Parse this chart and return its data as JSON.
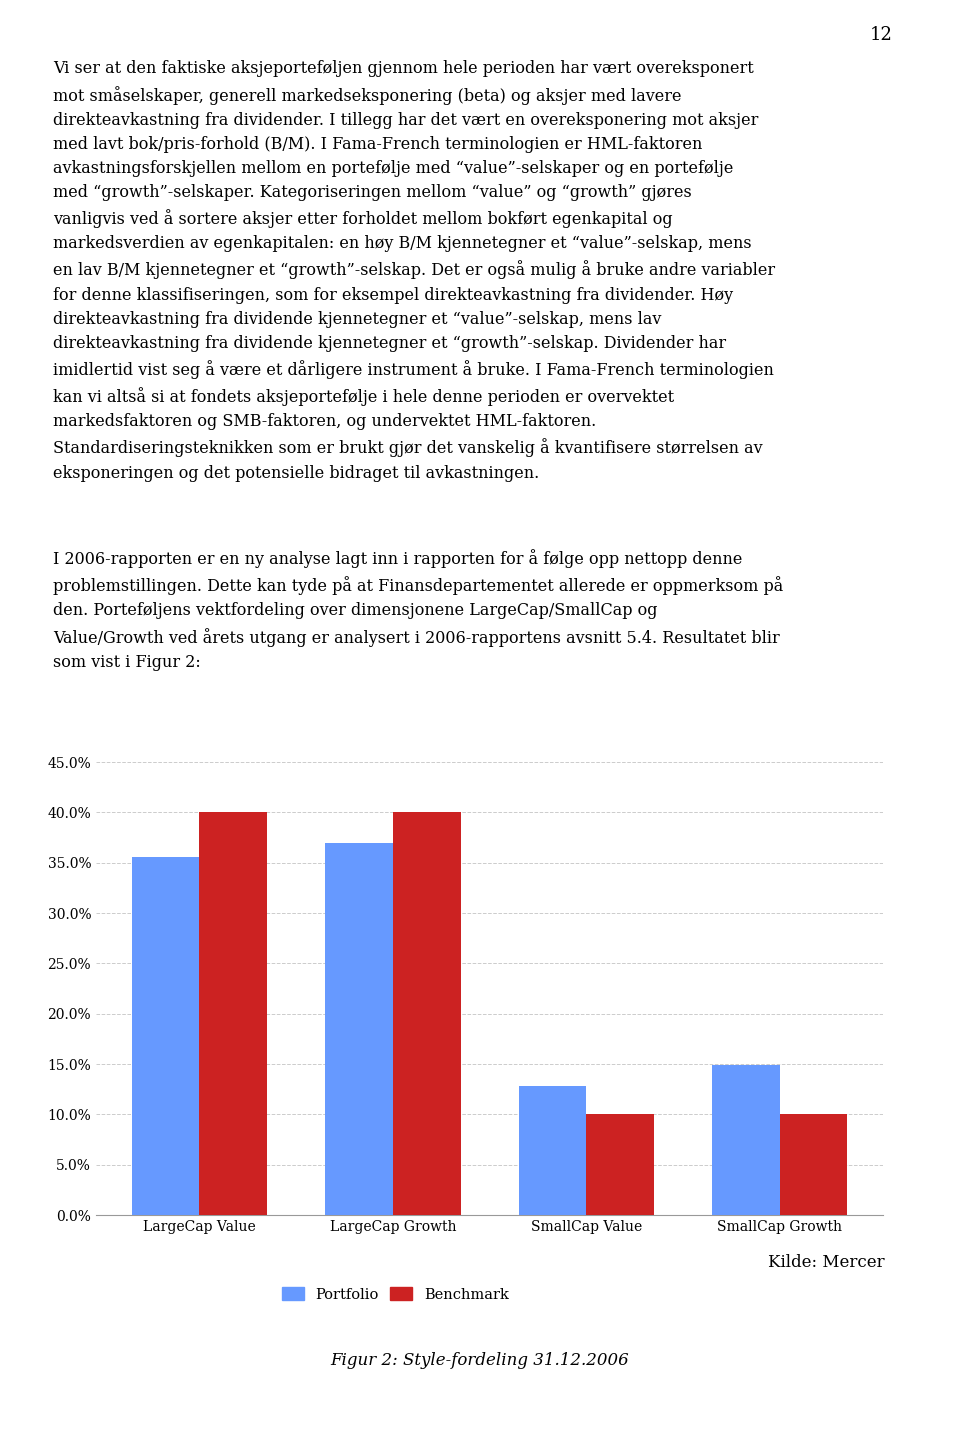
{
  "page_number": "12",
  "body_para1": "Vi ser at den faktiske aksjeporteføljen gjennom hele perioden har vært overeksponert\nmot småselskaper, generell markedseksponering (beta) og aksjer med lavere\ndirekteavkastning fra dividender. I tillegg har det vært en overeksponering mot aksjer\nmed lavt bok/pris-forhold (B/M). I Fama-French terminologien er HML-faktoren\navkastningsforskjellen mellom en portefølje med “value”-selskaper og en portefølje\nmed “growth”-selskaper. Kategoriseringen mellom “value” og “growth” gjøres\nvanligvis ved å sortere aksjer etter forholdet mellom bokført egenkapital og\nmarkedsverdien av egenkapitalen: en høy B/M kjennetegner et “value”-selskap, mens\nen lav B/M kjennetegner et “growth”-selskap. Det er også mulig å bruke andre variabler\nfor denne klassifiseringen, som for eksempel direkteavkastning fra dividender. Høy\ndirekteavkastning fra dividende kjennetegner et “value”-selskap, mens lav\ndirekteavkastning fra dividende kjennetegner et “growth”-selskap. Dividender har\nimidlertid vist seg å være et dårligere instrument å bruke. I Fama-French terminologien\nkan vi altså si at fondets aksjeportefølje i hele denne perioden er overvektet\nmarkedsfaktoren og SMB-faktoren, og undervektet HML-faktoren.\nStandardiseringsteknikken som er brukt gjør det vanskelig å kvantifisere størrelsen av\neksponeringen og det potensielle bidraget til avkastningen.",
  "body_para2": "I 2006-rapporten er en ny analyse lagt inn i rapporten for å følge opp nettopp denne\nproblemstillingen. Dette kan tyde på at Finansdepartementet allerede er oppmerksom på\nden. Porteføljens vektfordeling over dimensjonene LargeCap/SmallCap og\nValue/Growth ved årets utgang er analysert i 2006-rapportens avsnitt 5.4. Resultatet blir\nsom vist i Figur 2:",
  "categories": [
    "LargeCap Value",
    "LargeCap Growth",
    "SmallCap Value",
    "SmallCap Growth"
  ],
  "portfolio_values": [
    0.356,
    0.37,
    0.128,
    0.149
  ],
  "benchmark_values": [
    0.4,
    0.4,
    0.1,
    0.1
  ],
  "portfolio_color": "#6699FF",
  "benchmark_color": "#CC2222",
  "ylim": [
    0.0,
    0.45
  ],
  "yticks": [
    0.0,
    0.05,
    0.1,
    0.15,
    0.2,
    0.25,
    0.3,
    0.35,
    0.4,
    0.45
  ],
  "ytick_labels": [
    "0.0%",
    "5.0%",
    "10.0%",
    "15.0%",
    "20.0%",
    "25.0%",
    "30.0%",
    "35.0%",
    "40.0%",
    "45.0%"
  ],
  "legend_labels": [
    "Portfolio",
    "Benchmark"
  ],
  "caption": "Figur 2: Style-fordeling 31.12.2006",
  "source": "Kilde: Mercer",
  "background_color": "#ffffff",
  "grid_color": "#cccccc",
  "bar_width": 0.35,
  "font_size_body": 11.5,
  "font_size_axis": 10,
  "font_size_caption": 12,
  "font_size_source": 12,
  "font_size_pagenum": 13
}
